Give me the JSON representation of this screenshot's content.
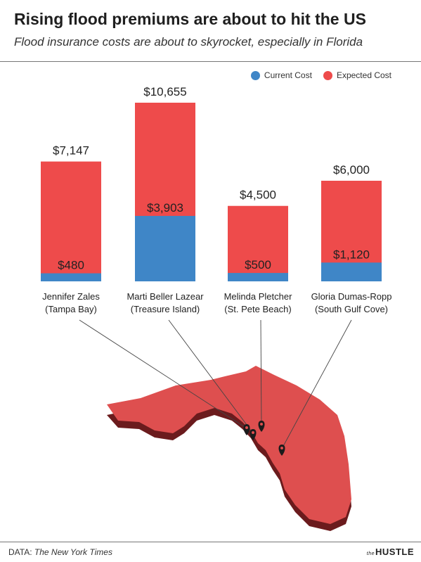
{
  "title": "Rising flood premiums are about to hit the US",
  "subtitle": "Flood insurance costs are about to skyrocket, especially in Florida",
  "legend": {
    "current_label": "Current Cost",
    "expected_label": "Expected Cost"
  },
  "colors": {
    "current": "#3f86c7",
    "expected": "#ee4b4b",
    "map_top": "#de4f4f",
    "map_side": "#6b1b1d",
    "pin": "#1b1b1b",
    "leader": "#444444"
  },
  "footer": {
    "source_prefix": "DATA:",
    "source_name": "The New York Times",
    "brand_small": "the",
    "brand": "HUSTLE"
  },
  "chart_data": {
    "type": "bar",
    "stacked": "overlay",
    "title": "Rising flood premiums are about to hit the US",
    "subtitle": "Flood insurance costs are about to skyrocket, especially in Florida",
    "legend_position": "top-right",
    "grid": false,
    "ylim": [
      0,
      10655
    ],
    "categories": [
      [
        "Jennifer Zales",
        "(Tampa Bay)"
      ],
      [
        "Marti Beller Lazear",
        "(Treasure Island)"
      ],
      [
        "Melinda Pletcher",
        "(St. Pete Beach)"
      ],
      [
        "Gloria Dumas-Ropp",
        "(South Gulf Cove)"
      ]
    ],
    "series": [
      {
        "name": "Current Cost",
        "values": [
          480,
          3903,
          500,
          1120
        ],
        "labels": [
          "$480",
          "$3,903",
          "$500",
          "$1,120"
        ]
      },
      {
        "name": "Expected Cost",
        "values": [
          7147,
          10655,
          4500,
          6000
        ],
        "labels": [
          "$7,147",
          "$10,655",
          "$4,500",
          "$6,000"
        ]
      }
    ]
  }
}
